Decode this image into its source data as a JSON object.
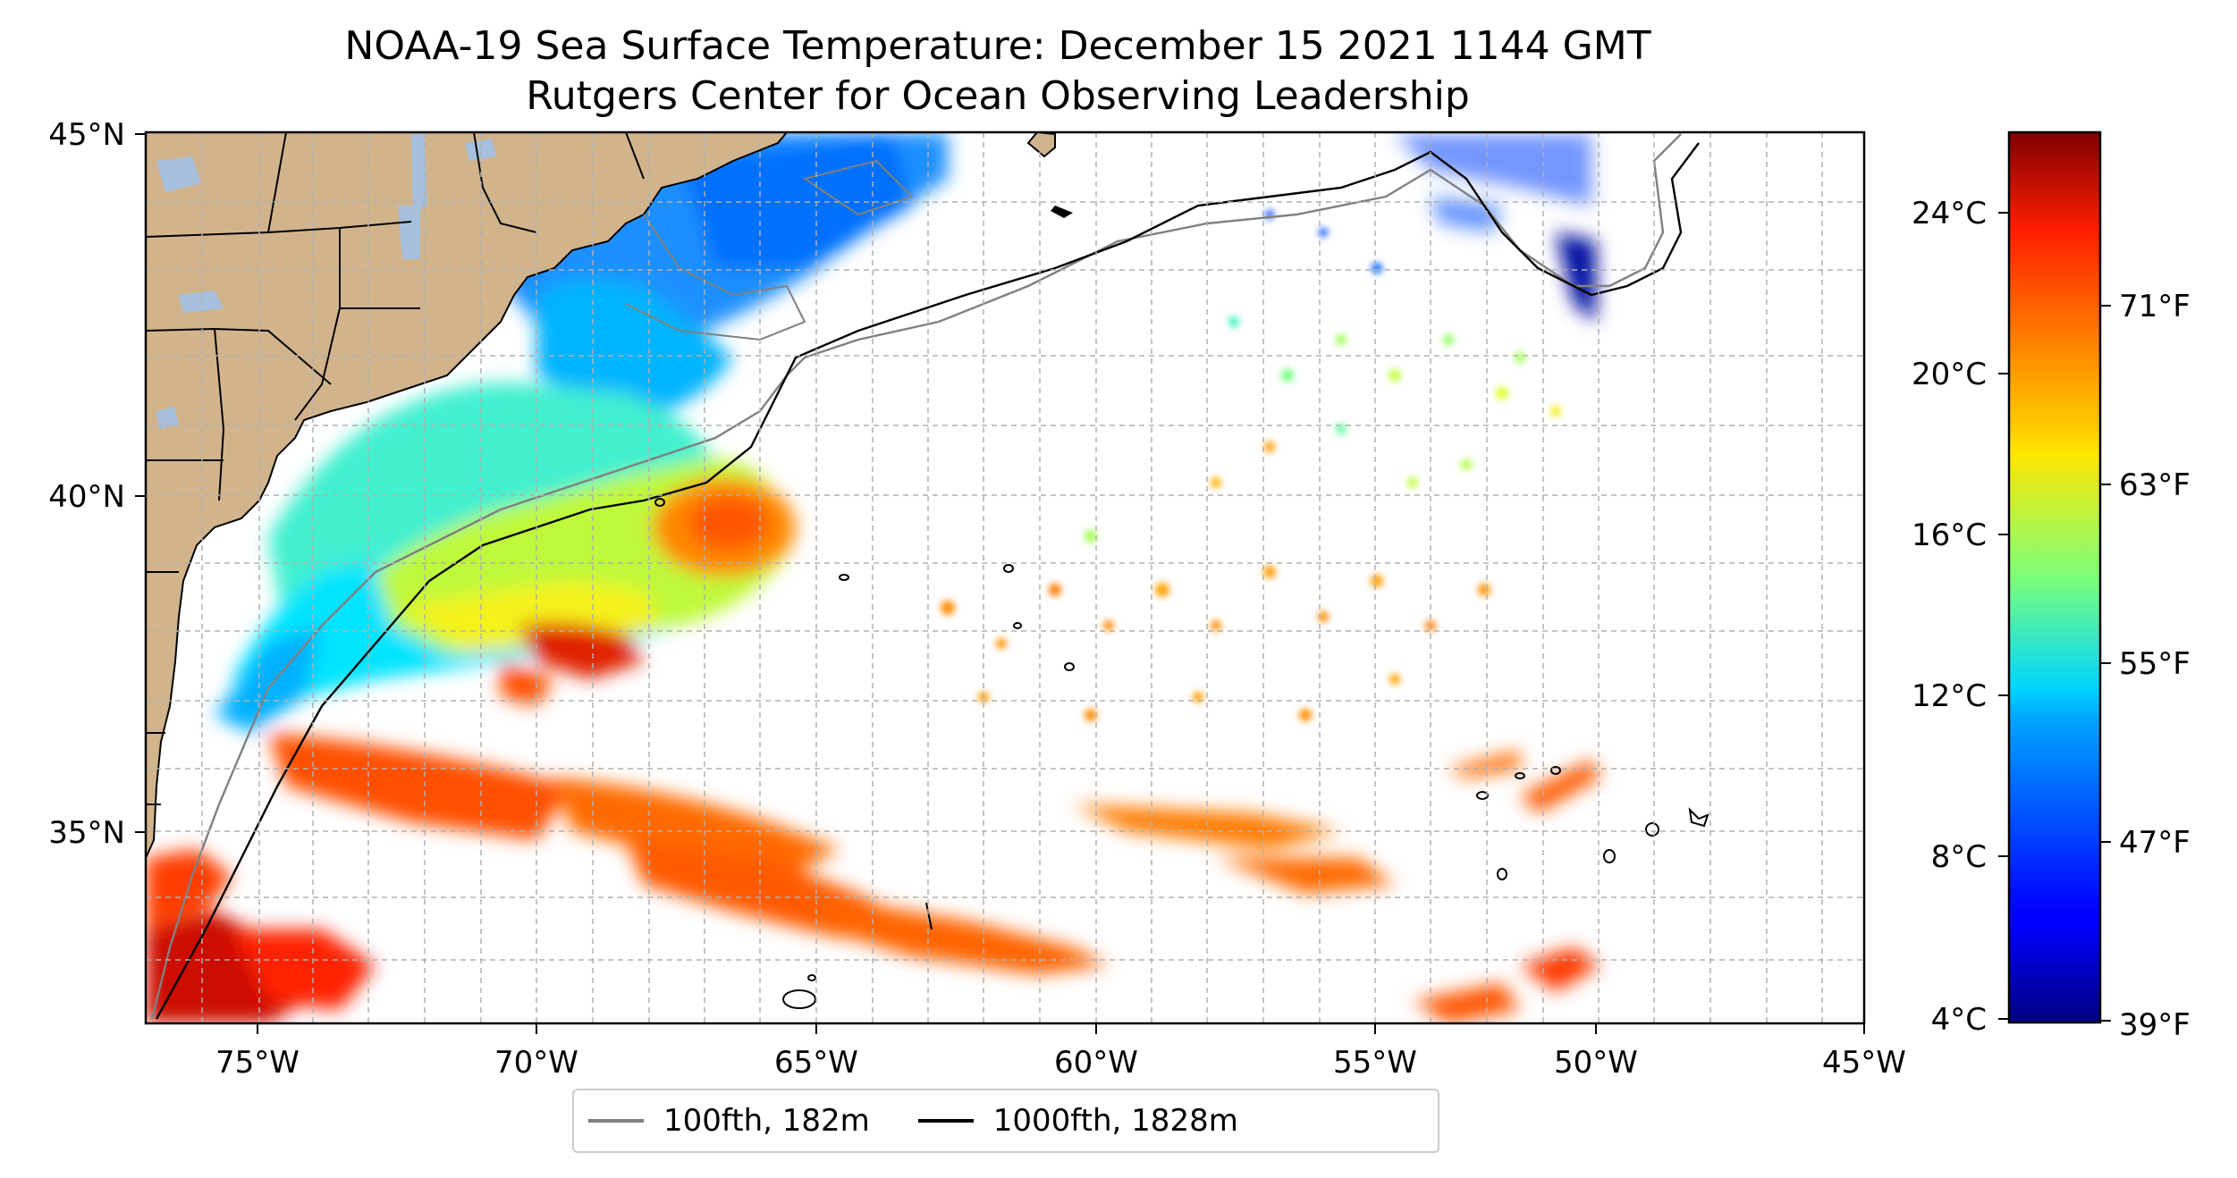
{
  "title": {
    "line1": "NOAA-19 Sea Surface Temperature: December 15 2021 1144 GMT",
    "line2": "Rutgers Center for Ocean Observing Leadership"
  },
  "map": {
    "lon_range": [
      -77,
      -45
    ],
    "lat_range": [
      32.2,
      45
    ],
    "grid": true,
    "x_ticks": [
      "75°W",
      "70°W",
      "65°W",
      "60°W",
      "55°W",
      "50°W",
      "45°W"
    ],
    "y_ticks": [
      "45°N",
      "40°N",
      "35°N"
    ],
    "land_color": "#d2b48c",
    "lake_color": "#a5bfdd",
    "data_edge_lon": -50
  },
  "colorbar": {
    "celsius_ticks": [
      "24°C",
      "20°C",
      "16°C",
      "12°C",
      "8°C",
      "4°C"
    ],
    "fahrenheit_ticks": [
      "71°F",
      "63°F",
      "55°F",
      "47°F",
      "39°F"
    ],
    "range_c": [
      3.9,
      26
    ],
    "colormap": "jet"
  },
  "legend": {
    "items": [
      {
        "label": "100fth, 182m",
        "color": "#808080"
      },
      {
        "label": "1000fth, 1828m",
        "color": "#000000"
      }
    ]
  }
}
